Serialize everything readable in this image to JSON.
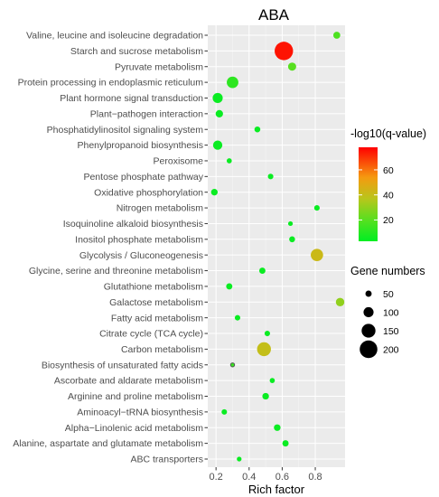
{
  "chart_data": {
    "type": "scatter",
    "title": "ABA",
    "xlabel": "Rich factor",
    "ylabel": "",
    "xlim": [
      0.15,
      0.98
    ],
    "xticks": [
      "0.2",
      "0.4",
      "0.6",
      "0.8"
    ],
    "grid": true,
    "categories": [
      "Valine, leucine and isoleucine degradation",
      "Starch and sucrose metabolism",
      "Pyruvate metabolism",
      "Protein processing in endoplasmic reticulum",
      "Plant hormone signal transduction",
      "Plant−pathogen interaction",
      "Phosphatidylinositol signaling system",
      "Phenylpropanoid biosynthesis",
      "Peroxisome",
      "Pentose phosphate pathway",
      "Oxidative phosphorylation",
      "Nitrogen metabolism",
      "Isoquinoline alkaloid biosynthesis",
      "Inositol phosphate metabolism",
      "Glycolysis / Gluconeogenesis",
      "Glycine, serine and threonine metabolism",
      "Glutathione metabolism",
      "Galactose metabolism",
      "Fatty acid metabolism",
      "Citrate cycle (TCA cycle)",
      "Carbon metabolism",
      "Biosynthesis of unsaturated fatty acids",
      "Ascorbate and aldarate metabolism",
      "Arginine and proline metabolism",
      "Aminoacyl−tRNA biosynthesis",
      "Alpha−Linolenic acid metabolism",
      "Alanine, aspartate and glutamate metabolism",
      "ABC transporters"
    ],
    "points": [
      {
        "rich_factor": 0.93,
        "q_value_neglog10": 18,
        "gene_numbers": 60
      },
      {
        "rich_factor": 0.61,
        "q_value_neglog10": 75,
        "gene_numbers": 210
      },
      {
        "rich_factor": 0.66,
        "q_value_neglog10": 20,
        "gene_numbers": 75
      },
      {
        "rich_factor": 0.3,
        "q_value_neglog10": 12,
        "gene_numbers": 120
      },
      {
        "rich_factor": 0.21,
        "q_value_neglog10": 5,
        "gene_numbers": 100
      },
      {
        "rich_factor": 0.22,
        "q_value_neglog10": 5,
        "gene_numbers": 65
      },
      {
        "rich_factor": 0.45,
        "q_value_neglog10": 5,
        "gene_numbers": 45
      },
      {
        "rich_factor": 0.21,
        "q_value_neglog10": 5,
        "gene_numbers": 90
      },
      {
        "rich_factor": 0.28,
        "q_value_neglog10": 5,
        "gene_numbers": 35
      },
      {
        "rich_factor": 0.53,
        "q_value_neglog10": 5,
        "gene_numbers": 40
      },
      {
        "rich_factor": 0.19,
        "q_value_neglog10": 5,
        "gene_numbers": 55
      },
      {
        "rich_factor": 0.81,
        "q_value_neglog10": 5,
        "gene_numbers": 40
      },
      {
        "rich_factor": 0.65,
        "q_value_neglog10": 5,
        "gene_numbers": 30
      },
      {
        "rich_factor": 0.66,
        "q_value_neglog10": 5,
        "gene_numbers": 45
      },
      {
        "rich_factor": 0.81,
        "q_value_neglog10": 42,
        "gene_numbers": 130
      },
      {
        "rich_factor": 0.48,
        "q_value_neglog10": 5,
        "gene_numbers": 50
      },
      {
        "rich_factor": 0.28,
        "q_value_neglog10": 5,
        "gene_numbers": 50
      },
      {
        "rich_factor": 0.95,
        "q_value_neglog10": 30,
        "gene_numbers": 80
      },
      {
        "rich_factor": 0.33,
        "q_value_neglog10": 5,
        "gene_numbers": 40
      },
      {
        "rich_factor": 0.51,
        "q_value_neglog10": 5,
        "gene_numbers": 40
      },
      {
        "rich_factor": 0.49,
        "q_value_neglog10": 40,
        "gene_numbers": 150
      },
      {
        "rich_factor": 0.3,
        "q_value_neglog10": 14,
        "gene_numbers": 20
      },
      {
        "rich_factor": 0.54,
        "q_value_neglog10": 5,
        "gene_numbers": 35
      },
      {
        "rich_factor": 0.5,
        "q_value_neglog10": 5,
        "gene_numbers": 55
      },
      {
        "rich_factor": 0.25,
        "q_value_neglog10": 5,
        "gene_numbers": 40
      },
      {
        "rich_factor": 0.57,
        "q_value_neglog10": 5,
        "gene_numbers": 55
      },
      {
        "rich_factor": 0.62,
        "q_value_neglog10": 5,
        "gene_numbers": 50
      },
      {
        "rich_factor": 0.34,
        "q_value_neglog10": 5,
        "gene_numbers": 30
      }
    ],
    "color_legend": {
      "title": "-log10(q-value)",
      "ticks": [
        "20",
        "40",
        "60"
      ],
      "range": [
        3,
        78
      ],
      "low_color": "#00ee22",
      "high_color": "#ff0000",
      "mid_color": "#ffa500"
    },
    "size_legend": {
      "title": "Gene numbers",
      "values": [
        50,
        100,
        150,
        200
      ],
      "labels": [
        "50",
        "100",
        "150",
        "200"
      ]
    },
    "colors": {
      "panel_bg": "#ebebeb",
      "grid_major": "#ffffff",
      "point_outline": "#555555"
    }
  }
}
